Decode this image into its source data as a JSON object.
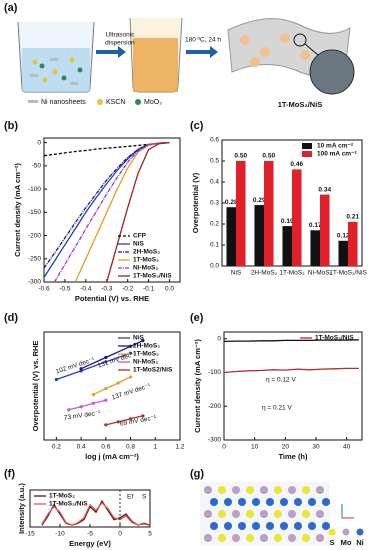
{
  "panel_labels": [
    "(a)",
    "(b)",
    "(c)",
    "(d)",
    "(e)",
    "(f)",
    "(g)"
  ],
  "scheme": {
    "step1": [
      "Ultrasonic",
      "dispersion"
    ],
    "step2": "180 ºC, 24 h",
    "legend": [
      "Ni nanosheets",
      "KSCN",
      "MoO₃"
    ],
    "product": "1T-MoS₂/NiS"
  },
  "structure": {
    "legend": [
      "S",
      "Mo",
      "Ni"
    ]
  },
  "chart_data": [
    {
      "type": "line",
      "xlabel": "Potential (V) vs. RHE",
      "ylabel": "Current density (mA cm⁻²)",
      "x": [
        -0.6,
        -0.55,
        -0.5,
        -0.45,
        -0.4,
        -0.35,
        -0.3,
        -0.25,
        -0.2,
        -0.15,
        -0.1,
        -0.05,
        0.0
      ],
      "xlim": [
        -0.6,
        0.05
      ],
      "ylim": [
        -300,
        10
      ],
      "xticks": [
        -0.6,
        -0.5,
        -0.4,
        -0.3,
        -0.2,
        -0.1,
        {
          "value": 0,
          "label": "0.0"
        }
      ],
      "yticks": [
        0,
        -50,
        -100,
        -150,
        -200,
        -250,
        -300
      ],
      "legend": "lower right",
      "series": [
        {
          "name": "CFP",
          "color": "#000000",
          "dash": "3 2",
          "values": [
            -28,
            -25,
            -22,
            -19,
            -17,
            -14,
            -12,
            -10,
            -8,
            -6,
            -4,
            -2,
            0
          ]
        },
        {
          "name": "NiS",
          "color": "#1f3fbf",
          "values": [
            -290,
            -255,
            -220,
            -185,
            -150,
            -118,
            -88,
            -60,
            -35,
            -15,
            -4,
            -1,
            0
          ]
        },
        {
          "name": "2H-MoS₂",
          "color": "#1a1a8c",
          "dash": "4 1 1 1",
          "values": [
            -270,
            -238,
            -205,
            -172,
            -140,
            -110,
            -80,
            -55,
            -32,
            -14,
            -4,
            -1,
            0
          ]
        },
        {
          "name": "1T-MoS₂",
          "color": "#e0a020",
          "values": [
            null,
            null,
            null,
            -300,
            -250,
            -200,
            -150,
            -100,
            -55,
            -20,
            -5,
            -1,
            0
          ]
        },
        {
          "name": "Ni-MoS₂",
          "color": "#9932cc",
          "dash": "4 1 1 1",
          "values": [
            null,
            -300,
            -262,
            -224,
            -186,
            -148,
            -110,
            -75,
            -42,
            -18,
            -5,
            -1,
            0
          ]
        },
        {
          "name": "1T-MoS₂/NiS",
          "color": "#a0201a",
          "values": [
            null,
            null,
            null,
            null,
            null,
            null,
            -300,
            -220,
            -140,
            -65,
            -15,
            -2,
            0
          ]
        }
      ]
    },
    {
      "type": "bar",
      "ylabel": "Overpotential (V)",
      "categories": [
        "NiS",
        "2H-MoS₂",
        "1T-MoS₂",
        "Ni-MoS₂",
        "1T-MoS₂/NiS"
      ],
      "ylim": [
        0,
        0.6
      ],
      "yticks": [
        {
          "value": 0,
          "label": "0.0"
        },
        0.1,
        0.2,
        0.3,
        0.4,
        0.5,
        0.6
      ],
      "legend": "upper right",
      "series": [
        {
          "name": "10 mA cm⁻²",
          "color": "#111111",
          "values": [
            0.28,
            0.29,
            0.19,
            0.17,
            0.12
          ],
          "value_labels": [
            "0.28",
            "0.29",
            "0.19",
            "0.17",
            "0.12"
          ]
        },
        {
          "name": "100 mA cm⁻²",
          "color": "#e0202a",
          "values": [
            0.5,
            0.5,
            0.46,
            0.34,
            0.21
          ],
          "value_labels": [
            "0.50",
            "0.50",
            "0.46",
            "0.34",
            "0.21"
          ]
        }
      ]
    },
    {
      "type": "line",
      "xlabel": "log j (mA cm⁻²)",
      "ylabel": "Overpotential (V) vs. RHE",
      "xlim": [
        0.1,
        1.2
      ],
      "ylim": [
        0.05,
        0.3
      ],
      "xticks": [
        0.2,
        0.4,
        0.6,
        0.8,
        1.0,
        1.2
      ],
      "legend": "upper right",
      "markers": true,
      "annotations": [
        "102 mV dec⁻¹",
        "131 mV dec⁻¹",
        "73 mV dec⁻¹",
        "137 mV dec⁻¹",
        "69 mV dec⁻¹"
      ],
      "series": [
        {
          "name": "NiS",
          "color": "#1f3fbf",
          "x": [
            0.2,
            0.4,
            0.6,
            0.8
          ],
          "values": [
            0.19,
            0.21,
            0.231,
            0.251
          ]
        },
        {
          "name": "2H-MoS₂",
          "color": "#1a1a8c",
          "x": [
            0.4,
            0.6,
            0.8,
            0.9
          ],
          "values": [
            0.215,
            0.241,
            0.267,
            0.28
          ]
        },
        {
          "name": "1T-MoS₂",
          "color": "#e0a020",
          "x": [
            0.5,
            0.6,
            0.7,
            0.8
          ],
          "values": [
            0.155,
            0.169,
            0.182,
            0.196
          ]
        },
        {
          "name": "Ni-MoS₂",
          "color": "#cc55dd",
          "x": [
            0.3,
            0.4,
            0.5,
            0.6
          ],
          "values": [
            0.12,
            0.127,
            0.135,
            0.142
          ]
        },
        {
          "name": "1T-MoS2/NiS",
          "color": "#b0302a",
          "x": [
            0.6,
            0.7,
            0.8,
            0.9
          ],
          "values": [
            0.085,
            0.092,
            0.099,
            0.106
          ]
        }
      ]
    },
    {
      "type": "line",
      "xlabel": "Time (h)",
      "ylabel": "Current density (mA cm⁻²)",
      "x": [
        0,
        4,
        8,
        12,
        16,
        20,
        24,
        28,
        32,
        36,
        40,
        44
      ],
      "xlim": [
        0,
        45
      ],
      "ylim": [
        -300,
        20
      ],
      "xticks": [
        0,
        10,
        20,
        30,
        40
      ],
      "yticks": [
        0,
        -100,
        -200,
        -300
      ],
      "legend": "upper right",
      "annotations": [
        "η = 0.12 V",
        "η = 0.21 V"
      ],
      "series": [
        {
          "color": "#111111",
          "values": [
            -8,
            -7,
            -7,
            -6,
            -6,
            -5,
            -5,
            -5,
            -4,
            -4,
            -4,
            -3
          ]
        },
        {
          "name": "1T-MoS₂/NiS",
          "color": "#b0302a",
          "values": [
            -100,
            -97,
            -95,
            -94,
            -92,
            -93,
            -90,
            -92,
            -90,
            -89,
            -88,
            -88
          ]
        }
      ]
    },
    {
      "type": "line",
      "xlabel": "Energy (eV)",
      "ylabel": "Intensity (a.u.)",
      "x": [
        -13,
        -12,
        -11,
        -10,
        -9,
        -8,
        -7,
        -6,
        -5,
        -4,
        -3,
        -2,
        -1,
        0,
        1,
        2,
        3,
        4,
        5
      ],
      "xlim": [
        -15,
        5
      ],
      "ylim": [
        0,
        1
      ],
      "xticks": [
        -15,
        -10,
        -5,
        0,
        5
      ],
      "legend": "upper left",
      "annotations": [
        "S",
        "Ef"
      ],
      "series": [
        {
          "name": "1T-MoS₂",
          "color": "#5a1010",
          "values": [
            0.05,
            0.3,
            0.6,
            0.35,
            0.1,
            0.05,
            0.1,
            0.2,
            0.55,
            0.4,
            0.7,
            0.45,
            0.2,
            0.25,
            0.35,
            0.15,
            0.05,
            0.1,
            0.05
          ]
        },
        {
          "name": "1T-MoS₂/NiS",
          "color": "#e05a50",
          "values": [
            0.08,
            0.35,
            0.55,
            0.4,
            0.12,
            0.05,
            0.12,
            0.25,
            0.6,
            0.45,
            0.65,
            0.5,
            0.25,
            0.2,
            0.3,
            0.12,
            0.06,
            0.08,
            0.04
          ]
        }
      ]
    }
  ]
}
